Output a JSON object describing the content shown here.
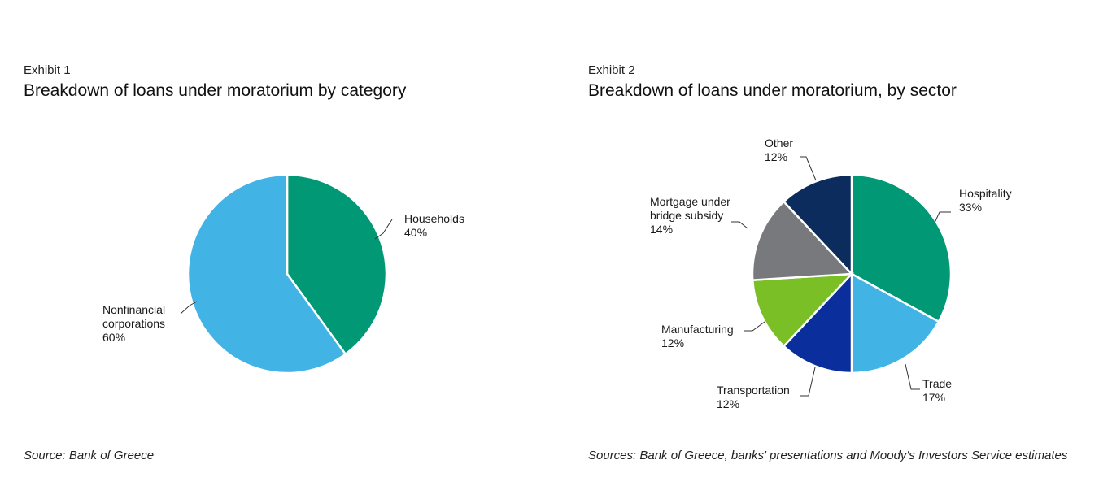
{
  "colors": {
    "households": "#009875",
    "nonfinancial": "#42b3e5",
    "hospitality": "#009875",
    "trade": "#42b3e5",
    "transportation": "#0a2f9c",
    "manufacturing": "#7abf26",
    "mortgage": "#77797c",
    "other": "#0b2c5c"
  },
  "chart_data": [
    {
      "type": "pie",
      "exhibit": "Exhibit 1",
      "title": "Breakdown of loans under moratorium by category",
      "source": "Source: Bank of Greece",
      "slices": [
        {
          "key": "households",
          "label_lines": [
            "Households"
          ],
          "value": 40,
          "value_label": "40%",
          "color": "#009875"
        },
        {
          "key": "nonfinancial",
          "label_lines": [
            "Nonfinancial",
            "corporations"
          ],
          "value": 60,
          "value_label": "60%",
          "color": "#42b3e5"
        }
      ]
    },
    {
      "type": "pie",
      "exhibit": "Exhibit 2",
      "title": "Breakdown of loans under moratorium, by sector",
      "source": "Sources: Bank of Greece, banks' presentations and Moody's Investors Service estimates",
      "slices": [
        {
          "key": "hospitality",
          "label_lines": [
            "Hospitality"
          ],
          "value": 33,
          "value_label": "33%",
          "color": "#009875"
        },
        {
          "key": "trade",
          "label_lines": [
            "Trade"
          ],
          "value": 17,
          "value_label": "17%",
          "color": "#42b3e5"
        },
        {
          "key": "transportation",
          "label_lines": [
            "Transportation"
          ],
          "value": 12,
          "value_label": "12%",
          "color": "#0a2f9c"
        },
        {
          "key": "manufacturing",
          "label_lines": [
            "Manufacturing"
          ],
          "value": 12,
          "value_label": "12%",
          "color": "#7abf26"
        },
        {
          "key": "mortgage",
          "label_lines": [
            "Mortgage under",
            "bridge subsidy"
          ],
          "value": 14,
          "value_label": "14%",
          "color": "#77797c"
        },
        {
          "key": "other",
          "label_lines": [
            "Other"
          ],
          "value": 12,
          "value_label": "12%",
          "color": "#0b2c5c"
        }
      ]
    }
  ]
}
